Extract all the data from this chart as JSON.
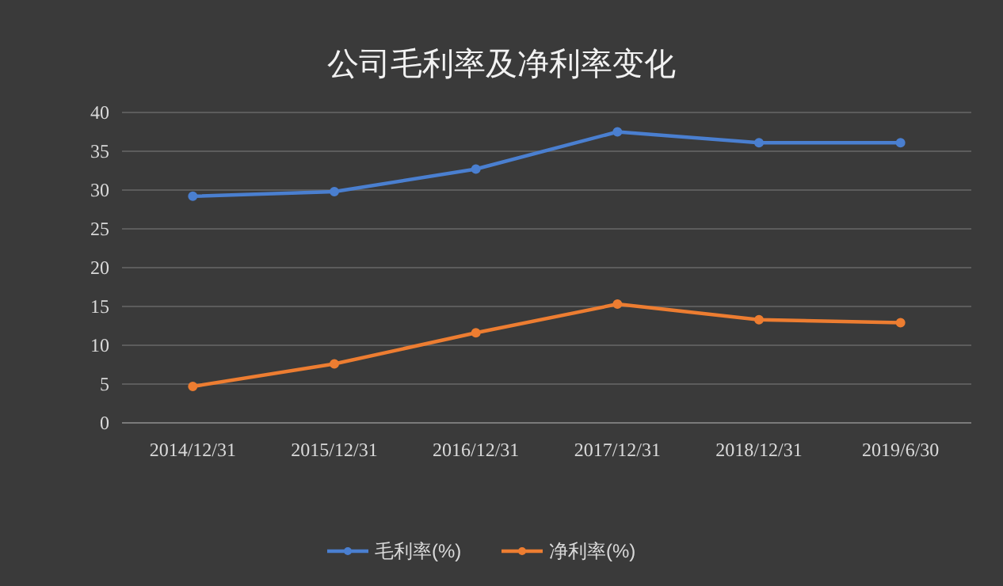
{
  "chart_data": {
    "type": "line",
    "title": "公司毛利率及净利率变化",
    "categories": [
      "2014/12/31",
      "2015/12/31",
      "2016/12/31",
      "2017/12/31",
      "2018/12/31",
      "2019/6/30"
    ],
    "series": [
      {
        "name": "毛利率(%)",
        "color": "#4a7fd0",
        "values": [
          29.2,
          29.8,
          32.7,
          37.5,
          36.1,
          36.1
        ]
      },
      {
        "name": "净利率(%)",
        "color": "#ed7d31",
        "values": [
          4.7,
          7.6,
          11.6,
          15.3,
          13.3,
          12.9
        ]
      }
    ],
    "ylim": [
      0,
      40
    ],
    "yticks": [
      0,
      5,
      10,
      15,
      20,
      25,
      30,
      35,
      40
    ],
    "grid": "y",
    "legend": "bottom",
    "marker": "circle",
    "line_style": "solid"
  }
}
